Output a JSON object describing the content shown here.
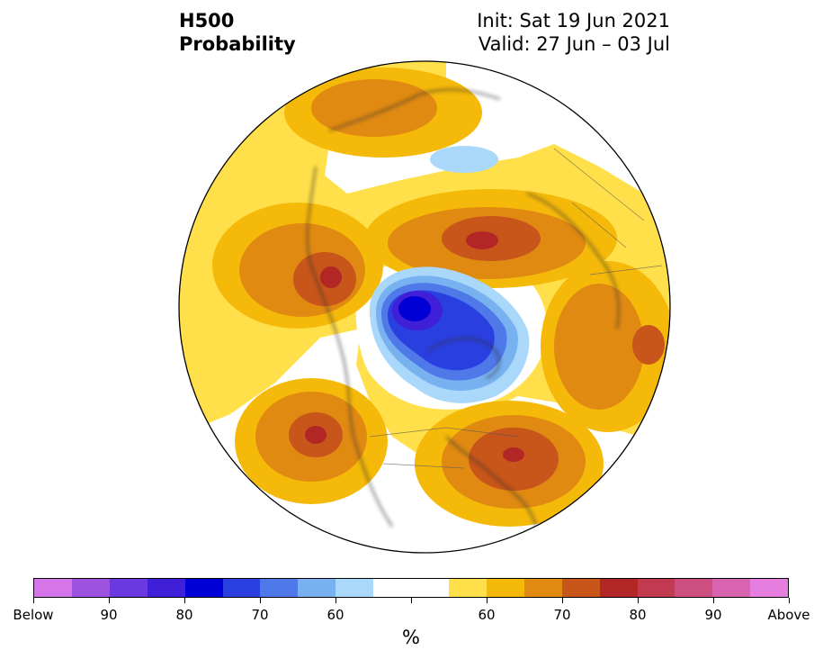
{
  "title": {
    "left_line1": "H500",
    "left_line2": "Probability",
    "right_line1": "Init: Sat 19 Jun 2021",
    "right_line2": "Valid: 27 Jun – 03 Jul"
  },
  "colorbar": {
    "colors": [
      "#d675ea",
      "#9e52e0",
      "#6a3ae0",
      "#3f1fd8",
      "#0000d6",
      "#2a3fe0",
      "#4f78e8",
      "#78b1f0",
      "#aad8fa",
      "#ffffff",
      "#ffffff",
      "#ffe04a",
      "#f5b90a",
      "#e08a12",
      "#c8561a",
      "#b22626",
      "#c23a50",
      "#cc4f80",
      "#d864b0",
      "#e67ee0"
    ],
    "tick_labels": [
      "Below",
      "90",
      "80",
      "70",
      "60",
      "",
      "60",
      "70",
      "80",
      "90",
      "Above"
    ],
    "unit": "%"
  },
  "legend_colors": {
    "above_60": "#ffe04a",
    "above_65": "#f5b90a",
    "above_70": "#e08a12",
    "above_75": "#c8561a",
    "above_80": "#b22626",
    "below_60": "#aad8fa",
    "below_65": "#78b1f0",
    "below_70": "#4f78e8",
    "below_75": "#2a3fe0",
    "below_80": "#3f1fd8",
    "below_85": "#0000d6"
  }
}
